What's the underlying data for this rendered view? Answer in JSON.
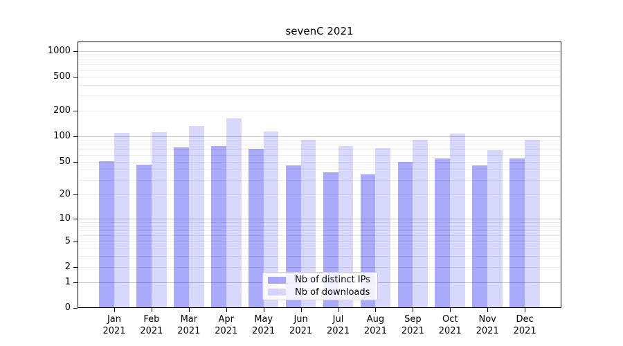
{
  "title": "sevenC 2021",
  "colors": {
    "bar_dark": "rgba(12,12,241,0.35)",
    "bar_light": "rgba(12,12,241,0.16)",
    "grid_major": "#c6c6c6",
    "grid_minor": "#ebebeb",
    "axis": "#000000",
    "legend_bg": "rgba(255,255,255,0.85)",
    "legend_border": "#cccccc",
    "text": "#000000"
  },
  "legend": {
    "items": [
      {
        "label": "Nb of distinct IPs",
        "swatch": "bar_dark"
      },
      {
        "label": "Nb of downloads",
        "swatch": "bar_light"
      }
    ]
  },
  "y_axis": {
    "tick_values": [
      0,
      1,
      2,
      5,
      10,
      20,
      50,
      100,
      200,
      500,
      1000
    ],
    "scale": "log1p"
  },
  "x_axis": {
    "months": [
      "Jan",
      "Feb",
      "Mar",
      "Apr",
      "May",
      "Jun",
      "Jul",
      "Aug",
      "Sep",
      "Oct",
      "Nov",
      "Dec"
    ],
    "year": "2021"
  },
  "chart_data": {
    "type": "bar",
    "title": "sevenC 2021",
    "categories": [
      "Jan 2021",
      "Feb 2021",
      "Mar 2021",
      "Apr 2021",
      "May 2021",
      "Jun 2021",
      "Jul 2021",
      "Aug 2021",
      "Sep 2021",
      "Oct 2021",
      "Nov 2021",
      "Dec 2021"
    ],
    "series": [
      {
        "name": "Nb of distinct IPs",
        "values": [
          51,
          46,
          74,
          76,
          71,
          45,
          37,
          35,
          50,
          55,
          45,
          55
        ]
      },
      {
        "name": "Nb of downloads",
        "values": [
          110,
          112,
          133,
          163,
          114,
          91,
          77,
          72,
          91,
          107,
          68,
          90
        ]
      }
    ],
    "xlabel": "",
    "ylabel": "",
    "yscale": "symlog (log10 of 1+x)",
    "yticks": [
      0,
      1,
      2,
      5,
      10,
      20,
      50,
      100,
      200,
      500,
      1000
    ],
    "ylim": [
      0,
      1290
    ],
    "grid": "major and minor horizontal",
    "legend_position": "lower center"
  }
}
